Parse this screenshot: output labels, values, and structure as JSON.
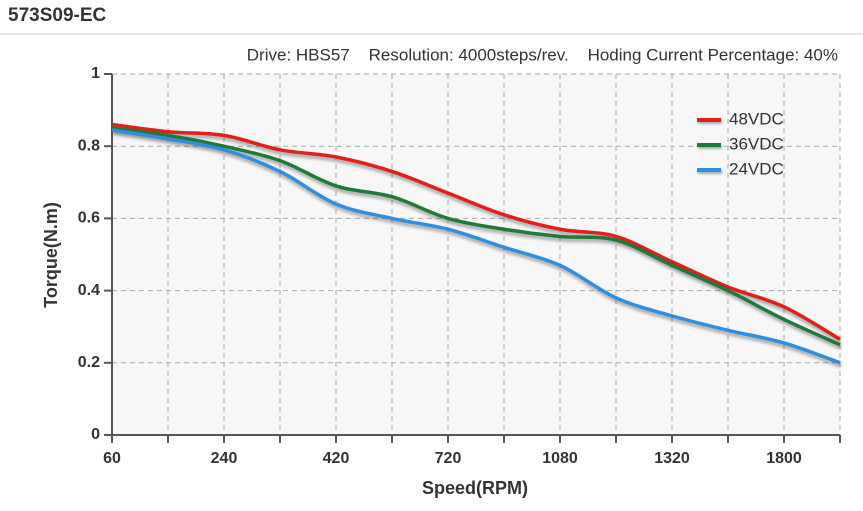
{
  "header": {
    "title": "573S09-EC"
  },
  "chart_data": {
    "type": "line",
    "subtitle": "Drive: HBS57    Resolution: 4000steps/rev.    Hoding Current Percentage: 40%",
    "x_label": "Speed(RPM)",
    "y_label": "Torque(N.m)",
    "categories": [
      "60",
      null,
      "240",
      null,
      "420",
      null,
      "720",
      null,
      "1080",
      null,
      "1320",
      null,
      "1800",
      null
    ],
    "ylim": [
      0,
      1
    ],
    "yticks": [
      0,
      0.2,
      0.4,
      0.6,
      0.8,
      1
    ],
    "grid": true,
    "legend": "upper right",
    "series": [
      {
        "name": "48VDC",
        "color": "#e0201b",
        "values": [
          0.86,
          0.84,
          0.83,
          0.79,
          0.77,
          0.73,
          0.67,
          0.61,
          0.57,
          0.55,
          0.48,
          0.41,
          0.355,
          0.265
        ]
      },
      {
        "name": "36VDC",
        "color": "#1f7a3a",
        "values": [
          0.85,
          0.83,
          0.8,
          0.76,
          0.69,
          0.66,
          0.6,
          0.57,
          0.55,
          0.54,
          0.47,
          0.4,
          0.32,
          0.25
        ]
      },
      {
        "name": "24VDC",
        "color": "#2f8ee0",
        "values": [
          0.845,
          0.82,
          0.79,
          0.73,
          0.64,
          0.6,
          0.57,
          0.52,
          0.47,
          0.38,
          0.33,
          0.29,
          0.255,
          0.2
        ]
      }
    ]
  }
}
